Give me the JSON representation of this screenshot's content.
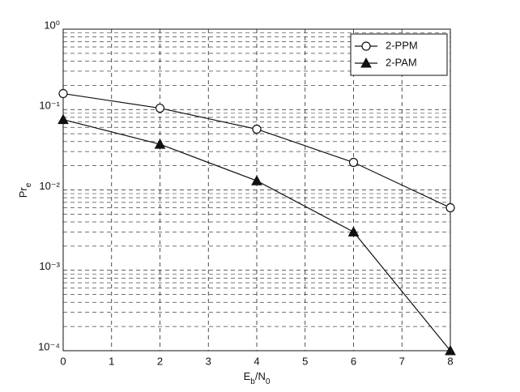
{
  "chart_data": {
    "type": "line",
    "xlabel": [
      "E",
      "b",
      "/N",
      "0"
    ],
    "ylabel": [
      "Pr",
      "e"
    ],
    "x": [
      0,
      2,
      4,
      6,
      8
    ],
    "series": [
      {
        "name": "2-PPM",
        "color": "#111111",
        "marker": "o",
        "values": [
          0.158,
          0.104,
          0.057,
          0.022,
          0.006
        ]
      },
      {
        "name": "2-PAM",
        "color": "#111111",
        "marker": "^",
        "values": [
          0.075,
          0.037,
          0.013,
          0.003,
          0.0001
        ]
      }
    ],
    "xlim": [
      0,
      8
    ],
    "xticks": [
      0,
      1,
      2,
      3,
      4,
      5,
      6,
      7,
      8
    ],
    "ylim": [
      0.0001,
      1
    ],
    "log_y": true,
    "yticks": [
      {
        "value": 0.0001,
        "label": "10⁻⁴"
      },
      {
        "value": 0.001,
        "label": "10⁻³"
      },
      {
        "value": 0.01,
        "label": "10⁻²"
      },
      {
        "value": 0.1,
        "label": "10⁻¹"
      },
      {
        "value": 1,
        "label": "10⁰"
      }
    ],
    "grid": true,
    "legend": "upper right"
  }
}
